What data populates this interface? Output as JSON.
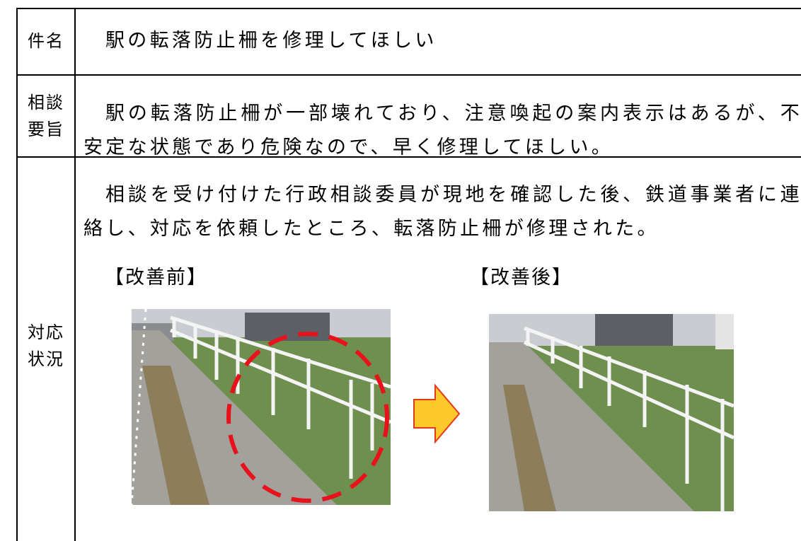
{
  "table": {
    "rows": [
      {
        "label": "件名",
        "content": "駅の転落防止柵を修理してほしい"
      },
      {
        "label": "相談要旨",
        "content": "駅の転落防止柵が一部壊れており、注意喚起の案内表示はあるが、不安定な状態であり危険なので、早く修理してほしい。"
      },
      {
        "label": "対応状況",
        "content": "相談を受け付けた行政相談委員が現地を確認した後、鉄道事業者に連絡し、対応を依頼したところ、転落防止柵が修理された。",
        "before_caption": "【改善前】",
        "after_caption": "【改善後】"
      }
    ]
  }
}
